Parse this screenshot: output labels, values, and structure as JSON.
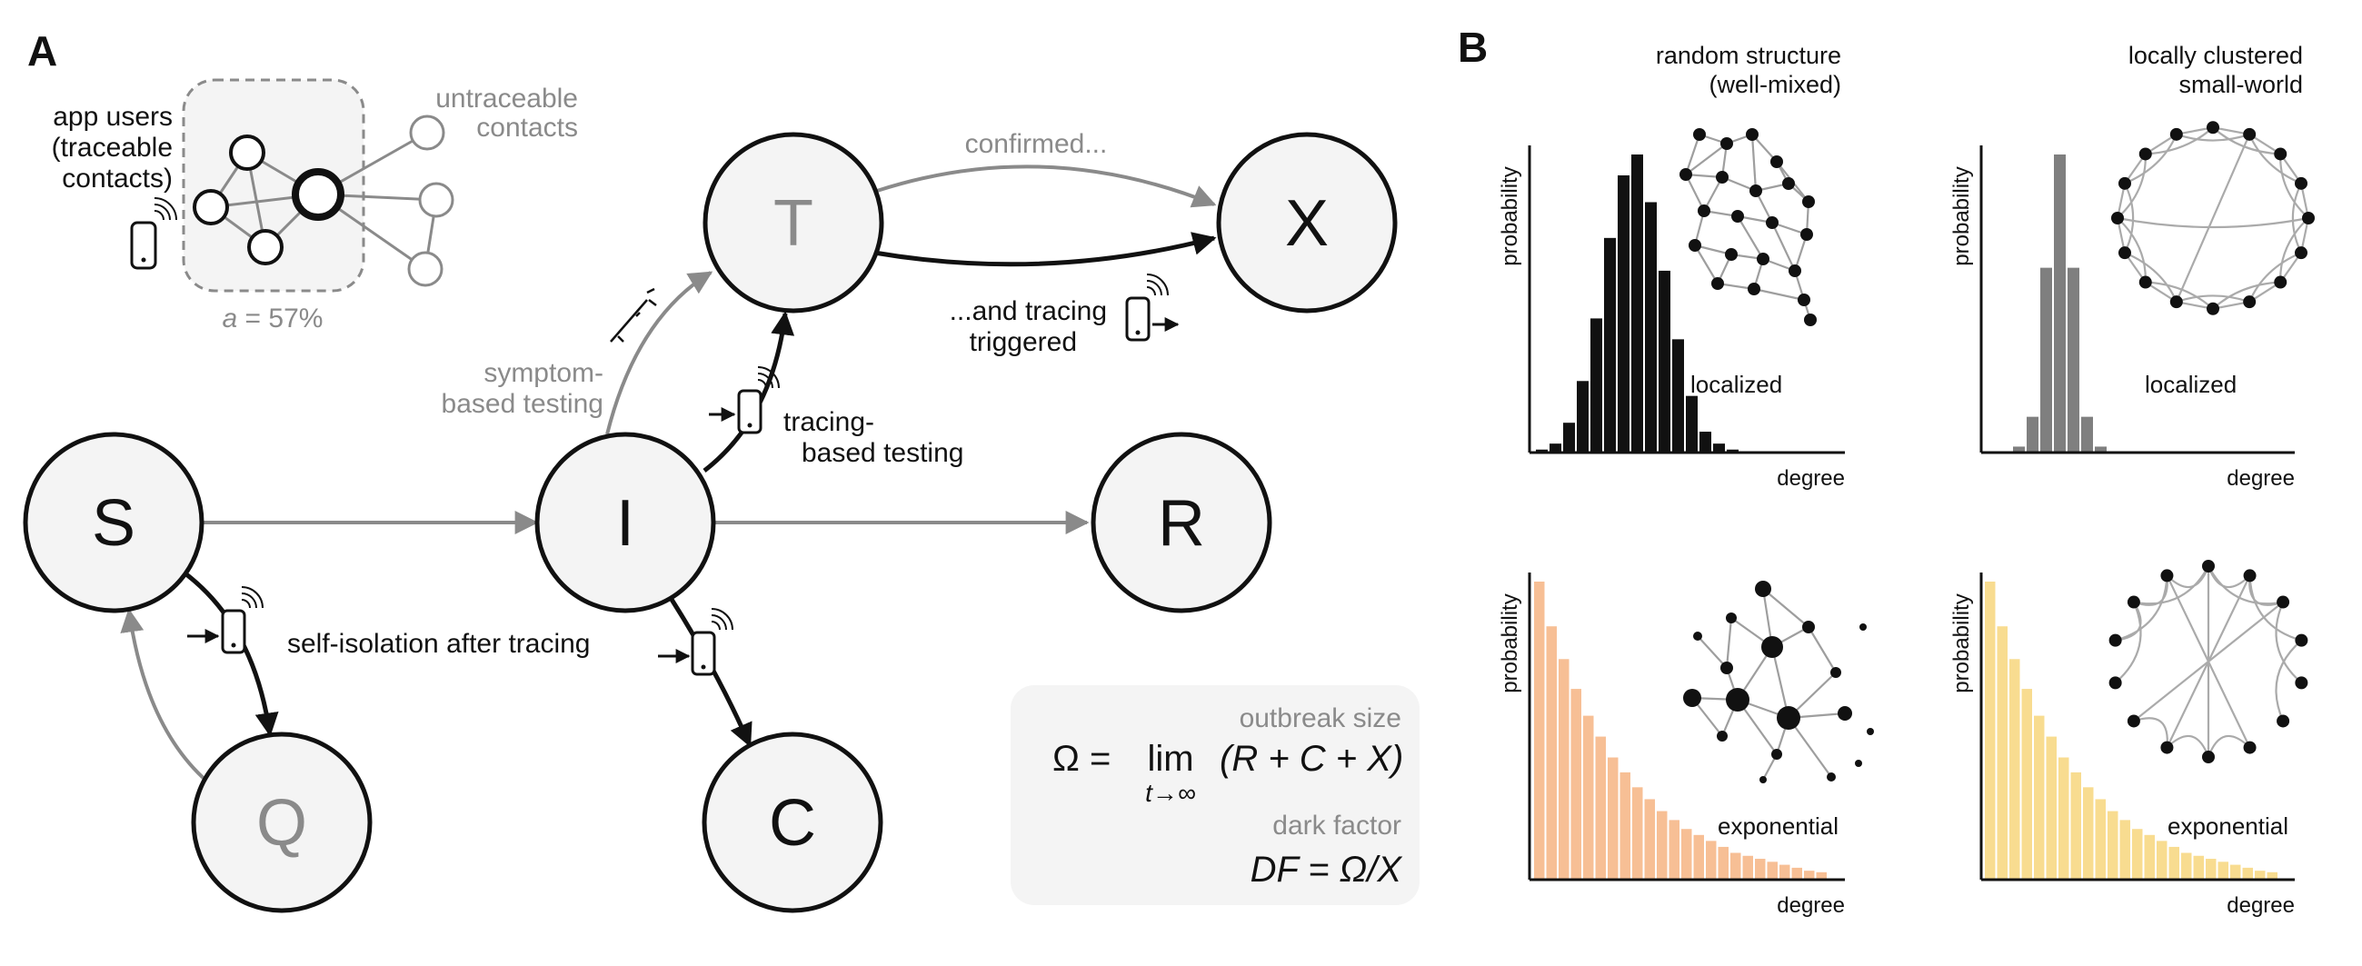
{
  "panel_a": {
    "label": "A",
    "nodes": {
      "S": "S",
      "I": "I",
      "R": "R",
      "T": "T",
      "X": "X",
      "Q": "Q",
      "C": "C"
    },
    "inset": {
      "app_users_line1": "app users",
      "app_users_line2": "(traceable",
      "app_users_line3": "contacts)",
      "untraceable_line1": "untraceable",
      "untraceable_line2": "contacts",
      "adoption_symbol": "a",
      "adoption_value": " = 57%"
    },
    "edge_labels": {
      "confirmed": "confirmed...",
      "tracing_triggered_line1": "...and tracing",
      "tracing_triggered_line2": "triggered",
      "symptom_line1": "symptom-",
      "symptom_line2": "based testing",
      "tracing_based_line1": "tracing-",
      "tracing_based_line2": "based testing",
      "self_isolation": "self-isolation after tracing"
    },
    "formula_box": {
      "outbreak_label": "outbreak size",
      "omega_lhs": "Ω =",
      "lim": "lim",
      "lim_sub": "t→∞",
      "omega_rhs": "(R + C + X)",
      "dark_label": "dark factor",
      "df_formula": "DF = Ω/X"
    }
  },
  "panel_b": {
    "label": "B",
    "column_titles": {
      "left_line1": "random structure",
      "left_line2": "(well-mixed)",
      "right_line1": "locally clustered",
      "right_line2": "small-world"
    },
    "colors": {
      "black": "#111111",
      "gray": "#7f7f7f",
      "orange": "#f7bf95",
      "yellow": "#f8dc90"
    },
    "axis_labels": {
      "y": "probability",
      "x": "degree"
    }
  },
  "chart_data": [
    {
      "type": "bar",
      "distribution_label": "localized",
      "color": "#111111",
      "values": [
        0.01,
        0.03,
        0.1,
        0.24,
        0.45,
        0.72,
        0.93,
        1.0,
        0.84,
        0.61,
        0.38,
        0.19,
        0.07,
        0.03,
        0.01
      ],
      "xlabel": "degree",
      "ylabel": "probability"
    },
    {
      "type": "bar",
      "distribution_label": "localized",
      "color": "#7f7f7f",
      "values": [
        0.02,
        0.12,
        0.62,
        1.0,
        0.62,
        0.12,
        0.02
      ],
      "xlabel": "degree",
      "ylabel": "probability"
    },
    {
      "type": "bar",
      "distribution_label": "exponential",
      "color": "#f7bf95",
      "values": [
        1.0,
        0.85,
        0.74,
        0.64,
        0.55,
        0.48,
        0.41,
        0.36,
        0.31,
        0.27,
        0.23,
        0.2,
        0.17,
        0.15,
        0.13,
        0.11,
        0.09,
        0.08,
        0.07,
        0.06,
        0.05,
        0.04,
        0.03,
        0.025
      ],
      "xlabel": "degree",
      "ylabel": "probability"
    },
    {
      "type": "bar",
      "distribution_label": "exponential",
      "color": "#f8dc90",
      "values": [
        1.0,
        0.85,
        0.74,
        0.64,
        0.55,
        0.48,
        0.41,
        0.36,
        0.31,
        0.27,
        0.23,
        0.2,
        0.17,
        0.15,
        0.13,
        0.11,
        0.09,
        0.08,
        0.07,
        0.06,
        0.05,
        0.04,
        0.03,
        0.025
      ],
      "xlabel": "degree",
      "ylabel": "probability"
    }
  ]
}
